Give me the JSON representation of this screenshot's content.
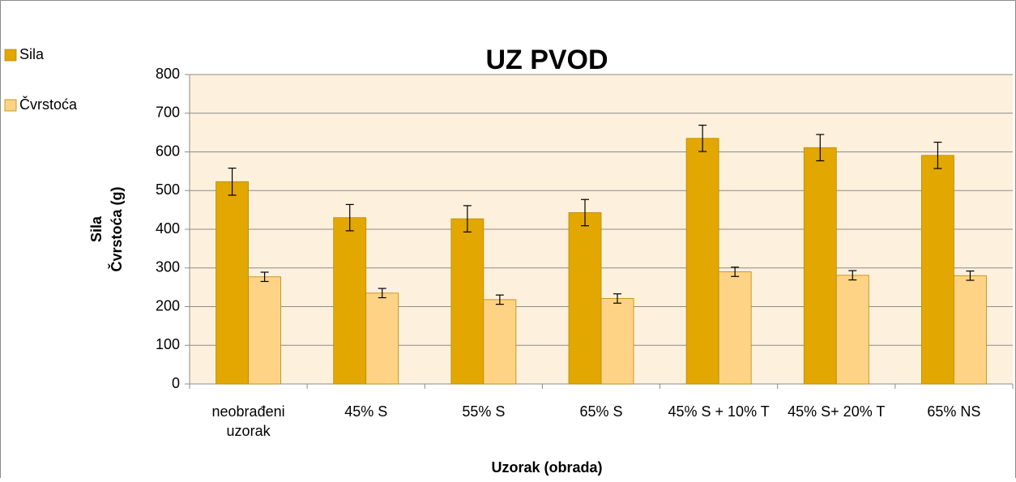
{
  "chart_data": {
    "type": "bar",
    "title": "UZ PVOD",
    "x_label": "Uzorak (obrada)",
    "y_label": [
      "Sila",
      "Čvrstoća (g)"
    ],
    "categories": [
      "neobrađeni uzorak",
      "45% S",
      "55% S",
      "65% S",
      "45% S + 10% T",
      "45% S+ 20% T",
      "65% NS"
    ],
    "series": [
      {
        "name": "Sila",
        "color": "#e2a700",
        "values": [
          523,
          430,
          427,
          443,
          635,
          611,
          591
        ],
        "errors": [
          35,
          34,
          34,
          34,
          34,
          34,
          34
        ]
      },
      {
        "name": "Čvrstoća",
        "color": "#ffd386",
        "values": [
          277,
          235,
          218,
          221,
          290,
          281,
          280
        ],
        "errors": [
          12,
          12,
          12,
          12,
          12,
          12,
          12
        ]
      }
    ],
    "ylim": [
      0,
      800
    ],
    "yticks": [
      0,
      100,
      200,
      300,
      400,
      500,
      600,
      700,
      800
    ],
    "grid": true,
    "legend": "top-left"
  }
}
